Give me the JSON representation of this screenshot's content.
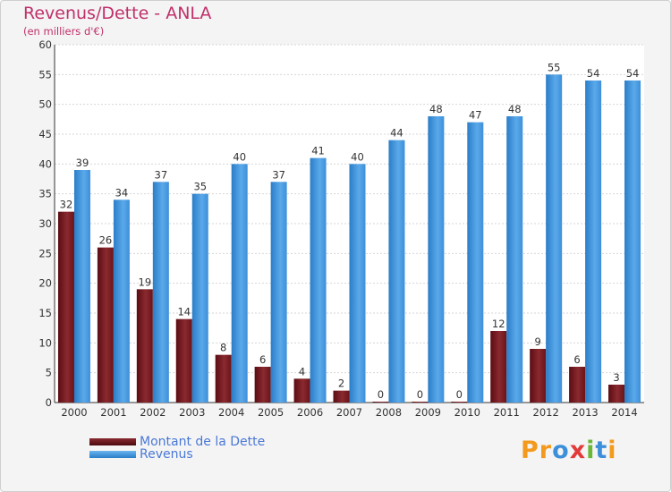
{
  "chart_data": {
    "type": "bar",
    "title": "Revenus/Dette - ANLA",
    "subtitle": "(en milliers d'€)",
    "categories": [
      "2000",
      "2001",
      "2002",
      "2003",
      "2004",
      "2005",
      "2006",
      "2007",
      "2008",
      "2009",
      "2010",
      "2011",
      "2012",
      "2013",
      "2014"
    ],
    "series": [
      {
        "name": "Montant de la Dette",
        "color": "#7a1f24",
        "values": [
          32,
          26,
          19,
          14,
          8,
          6,
          4,
          2,
          0,
          0,
          0,
          12,
          9,
          6,
          3
        ]
      },
      {
        "name": "Revenus",
        "color": "#3d8fd9",
        "values": [
          39,
          34,
          37,
          35,
          40,
          37,
          41,
          40,
          44,
          48,
          47,
          48,
          55,
          54,
          54
        ]
      }
    ],
    "ylim": [
      0,
      60
    ],
    "yticks": [
      0,
      5,
      10,
      15,
      20,
      25,
      30,
      35,
      40,
      45,
      50,
      55,
      60
    ],
    "grid": true,
    "legend_position": "bottom-left"
  },
  "logo": {
    "text": "Proxiti",
    "letters": [
      {
        "char": "P",
        "color": "#f39a1e"
      },
      {
        "char": "r",
        "color": "#f39a1e"
      },
      {
        "char": "o",
        "color": "#3d8fd9"
      },
      {
        "char": "x",
        "color": "#e23a3a"
      },
      {
        "char": "i",
        "color": "#6bb838"
      },
      {
        "char": "t",
        "color": "#3d8fd9"
      },
      {
        "char": "i",
        "color": "#f39a1e"
      }
    ]
  }
}
